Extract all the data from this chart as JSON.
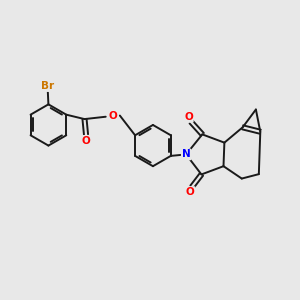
{
  "bg_color": "#e8e8e8",
  "bond_color": "#1a1a1a",
  "atom_colors": {
    "Br": "#cc7700",
    "O": "#ff0000",
    "N": "#0000ff"
  },
  "bond_width": 1.4,
  "figsize": [
    3.0,
    3.0
  ],
  "dpi": 100
}
